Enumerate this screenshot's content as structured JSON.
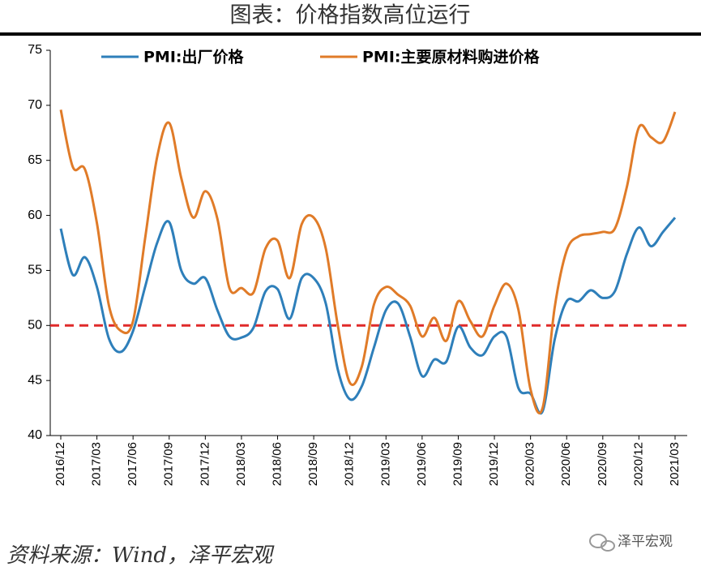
{
  "chart_data": {
    "type": "line",
    "title": "图表：价格指数高位运行",
    "source": "资料来源：Wind，泽平宏观",
    "watermark": "泽平宏观",
    "categories": [
      "2016/12",
      null,
      null,
      "2017/03",
      null,
      null,
      "2017/06",
      null,
      null,
      "2017/09",
      null,
      null,
      "2017/12",
      null,
      null,
      "2018/03",
      null,
      null,
      "2018/06",
      null,
      null,
      "2018/09",
      null,
      null,
      "2018/12",
      null,
      null,
      "2019/03",
      null,
      null,
      "2019/06",
      null,
      null,
      "2019/09",
      null,
      null,
      "2019/12",
      null,
      null,
      "2020/03",
      null,
      null,
      "2020/06",
      null,
      null,
      "2020/09",
      null,
      null,
      "2020/12",
      null,
      null,
      "2021/03"
    ],
    "series": [
      {
        "name": "PMI:出厂价格",
        "color": "#2e7fba",
        "values": [
          58.8,
          54.6,
          56.2,
          53.5,
          48.8,
          47.6,
          49.5,
          53.5,
          57.5,
          59.4,
          55.0,
          53.8,
          54.3,
          51.4,
          49.0,
          48.9,
          49.8,
          53.1,
          53.3,
          50.6,
          54.3,
          54.3,
          52.0,
          46.0,
          43.3,
          44.5,
          48.0,
          51.4,
          52.0,
          49.0,
          45.4,
          46.9,
          46.7,
          49.9,
          48.0,
          47.3,
          49.0,
          49.0,
          44.3,
          43.8,
          42.2,
          48.7,
          52.2,
          52.2,
          53.2,
          52.5,
          53.1,
          56.5,
          58.9,
          57.2,
          58.5,
          59.8
        ]
      },
      {
        "name": "PMI:主要原材料购进价格",
        "color": "#e07b28",
        "values": [
          69.6,
          64.4,
          64.2,
          59.3,
          51.8,
          49.5,
          50.4,
          57.9,
          65.3,
          68.4,
          63.4,
          59.8,
          62.2,
          59.7,
          53.4,
          53.4,
          53.0,
          57.0,
          57.7,
          54.3,
          59.2,
          59.8,
          57.0,
          50.0,
          44.8,
          46.3,
          51.9,
          53.5,
          52.8,
          51.8,
          49.0,
          50.7,
          48.6,
          52.2,
          50.4,
          49.0,
          51.8,
          53.8,
          51.4,
          44.2,
          42.5,
          51.6,
          56.8,
          58.1,
          58.3,
          58.5,
          58.8,
          62.6,
          68.0,
          67.1,
          66.7,
          69.4
        ]
      }
    ],
    "reference_line": {
      "value": 50,
      "color": "#e02a2a"
    },
    "ylim": [
      40,
      75
    ],
    "yticks": [
      40,
      45,
      50,
      55,
      60,
      65,
      70,
      75
    ]
  }
}
